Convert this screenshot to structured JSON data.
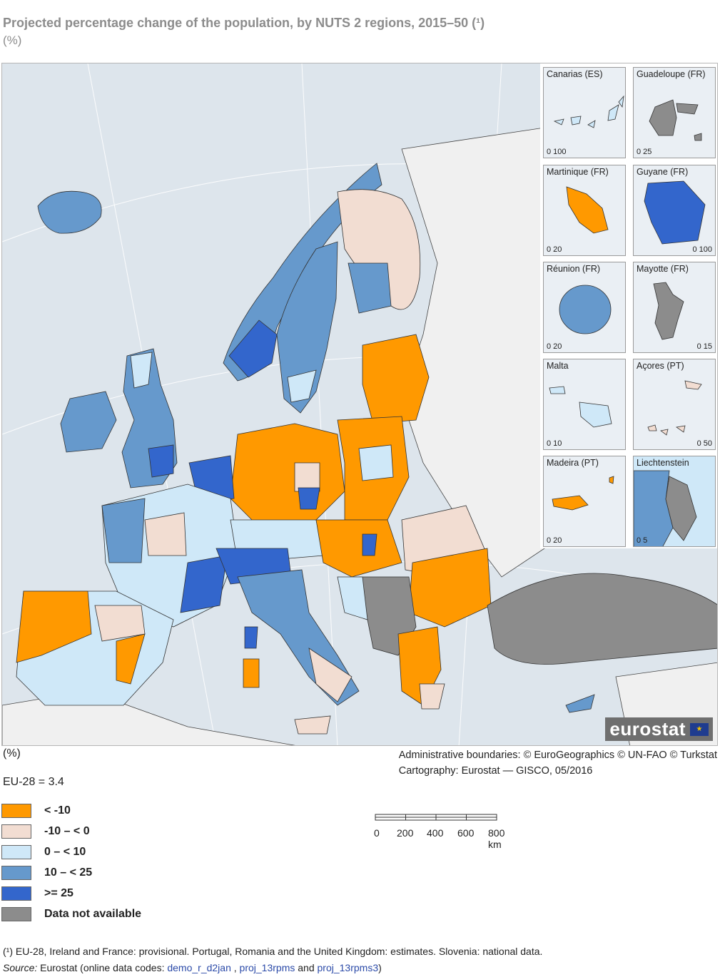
{
  "title": "Projected percentage change of the population, by NUTS 2 regions, 2015–50 (¹)",
  "subtitle": "(%)",
  "colors": {
    "lt_minus10": "#ff9900",
    "minus10_0": "#f2ddd2",
    "0_10": "#cfe8f8",
    "10_25": "#6699cc",
    "ge25": "#3366cc",
    "na": "#8c8c8c",
    "sea": "#dde5ec",
    "land_other": "#f0f0f0"
  },
  "insets": [
    {
      "name": "Canarias (ES)",
      "scale": "0  100",
      "category": "0_10"
    },
    {
      "name": "Guadeloupe (FR)",
      "scale": "0    25",
      "category": "na"
    },
    {
      "name": "Martinique (FR)",
      "scale": "0    20",
      "category": "lt_minus10"
    },
    {
      "name": "Guyane (FR)",
      "scale": "0  100",
      "category": "ge25"
    },
    {
      "name": "Réunion (FR)",
      "scale": "0    20",
      "category": "10_25"
    },
    {
      "name": "Mayotte (FR)",
      "scale": "0      15",
      "category": "na"
    },
    {
      "name": "Malta",
      "scale": "0    10",
      "category": "0_10"
    },
    {
      "name": "Açores (PT)",
      "scale": "0    50",
      "category": "minus10_0"
    },
    {
      "name": "Madeira (PT)",
      "scale": "0    20",
      "category": "lt_minus10"
    },
    {
      "name": "Liechtenstein",
      "scale": "0    5",
      "category": "na"
    }
  ],
  "logo_text": "eurostat",
  "unit_label": "(%)",
  "credits": [
    "Administrative boundaries: © EuroGeographics © UN-FAO © Turkstat",
    "Cartography: Eurostat — GISCO, 05/2016"
  ],
  "eu_value": "EU-28 = 3.4",
  "legend": [
    {
      "label": "< -10",
      "color": "#ff9900"
    },
    {
      "label": "-10 – < 0",
      "color": "#f2ddd2"
    },
    {
      "label": "0 – < 10",
      "color": "#cfe8f8"
    },
    {
      "label": "10 – < 25",
      "color": "#6699cc"
    },
    {
      "label": ">= 25",
      "color": "#3366cc"
    },
    {
      "label": "Data not available",
      "color": "#8c8c8c"
    }
  ],
  "scale_labels": [
    "0",
    "200",
    "400",
    "600",
    "800 km"
  ],
  "footnote": "(¹) EU-28, Ireland and France: provisional. Portugal, Romania and the United Kingdom: estimates. Slovenia: national data.",
  "source": {
    "label": "Source:",
    "text_before": " Eurostat (online data codes: ",
    "code1": "demo_r_d2jan",
    "sep1": " , ",
    "code2": "proj_13rpms",
    "sep2": " and ",
    "code3": "proj_13rpms3",
    "text_after": ")"
  }
}
